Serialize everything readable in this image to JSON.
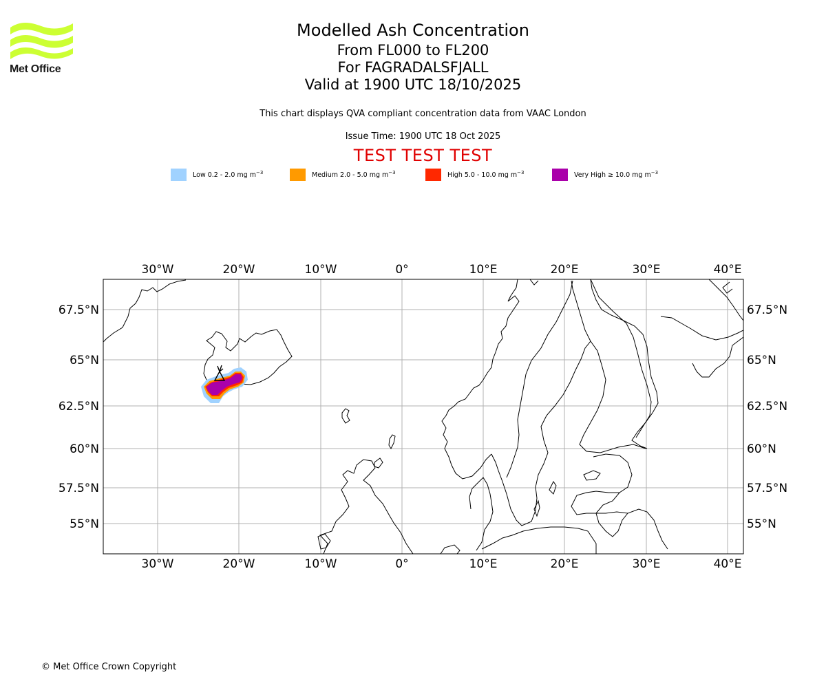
{
  "logo": {
    "text": "Met Office",
    "color": "#ccff33"
  },
  "title": {
    "main": "Modelled Ash Concentration",
    "levels": "From FL000 to FL200",
    "volcano": "For FAGRADALSFJALL",
    "valid": "Valid at 1900 UTC 18/10/2025"
  },
  "description": "This chart displays QVA compliant concentration data from VAAC London",
  "issue_time": "Issue Time: 1900 UTC 18 Oct 2025",
  "test_banner": "TEST TEST TEST",
  "legend": [
    {
      "label": "Low 0.2 - 2.0 mg m",
      "color": "#a0d2ff"
    },
    {
      "label": "Medium 2.0 - 5.0 mg m",
      "color": "#ff9a00"
    },
    {
      "label": "High 5.0 - 10.0 mg m",
      "color": "#ff2800"
    },
    {
      "label": "Very High ≥ 10.0 mg m",
      "color": "#aa00aa"
    }
  ],
  "legend_unit_exponent": "−3",
  "map": {
    "lon_ticks": [
      "30°W",
      "20°W",
      "10°W",
      "0°",
      "10°E",
      "20°E",
      "30°E",
      "40°E"
    ],
    "lat_ticks": [
      "67.5°N",
      "65°N",
      "62.5°N",
      "60°N",
      "57.5°N",
      "55°N"
    ],
    "extent": {
      "lon": [
        -36.7,
        41.8
      ],
      "lat": [
        53.2,
        69.2
      ]
    },
    "gridlines": true,
    "ash_cloud_location": "South-west Iceland"
  },
  "copyright": "© Met Office Crown Copyright"
}
